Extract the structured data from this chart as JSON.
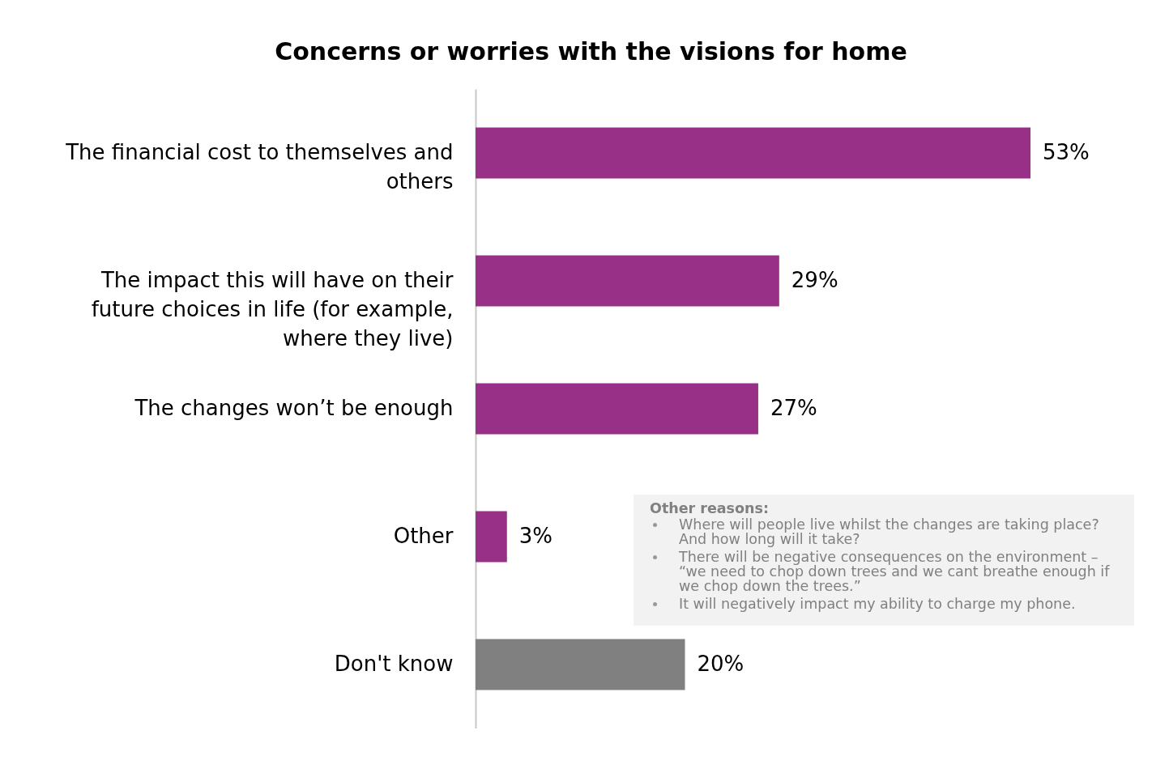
{
  "chart_data": {
    "type": "bar",
    "orientation": "horizontal",
    "title": "Concerns or worries with the visions for home",
    "categories": [
      "The financial cost to themselves and others",
      "The impact this will have on their future choices in life (for example, where they live)",
      "The changes won’t be enough",
      "Other",
      "Don't know"
    ],
    "values": [
      53,
      29,
      27,
      3,
      20
    ],
    "colors": [
      "#993087",
      "#993087",
      "#993087",
      "#993087",
      "#808080"
    ],
    "value_labels": [
      "53%",
      "29%",
      "27%",
      "3%",
      "20%"
    ],
    "annotations": [
      "Other reasons:",
      "Where will people live whilst the changes are taking place? And how long will it take?",
      "There will be negative consequences on the environment – “we need to chop down trees and we cant breathe enough if we chop down the trees.”",
      "It will negatively impact my ability to charge my phone."
    ],
    "grid": false
  }
}
